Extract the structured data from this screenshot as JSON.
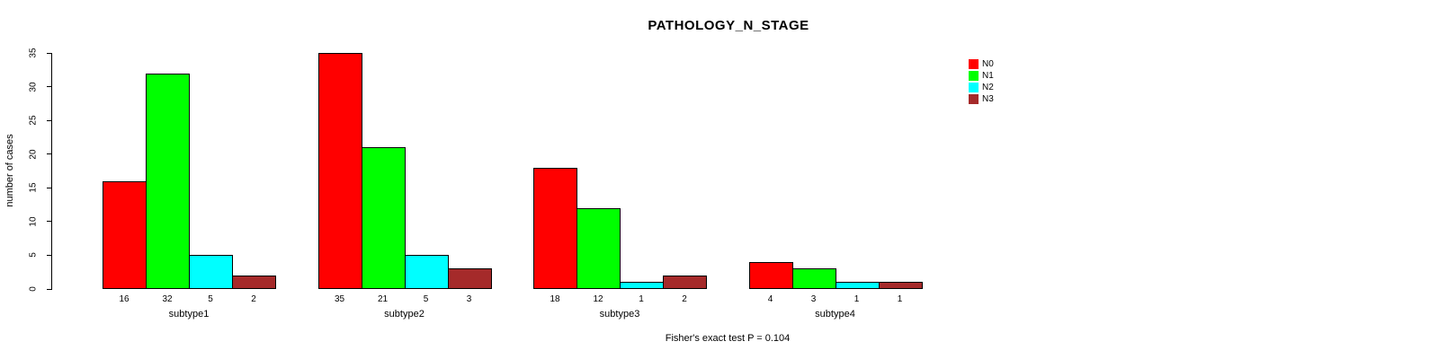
{
  "chart_data": {
    "type": "bar",
    "title": "PATHOLOGY_N_STAGE",
    "categories": [
      "subtype1",
      "subtype2",
      "subtype3",
      "subtype4"
    ],
    "series": [
      {
        "name": "N0",
        "color": "#ff0000",
        "values": [
          16,
          35,
          18,
          4
        ]
      },
      {
        "name": "N1",
        "color": "#00ff00",
        "values": [
          32,
          21,
          12,
          3
        ]
      },
      {
        "name": "N2",
        "color": "#00ffff",
        "values": [
          5,
          5,
          1,
          1
        ]
      },
      {
        "name": "N3",
        "color": "#a52a2a",
        "values": [
          2,
          3,
          2,
          1
        ]
      }
    ],
    "xlabel": "",
    "ylabel": "number of cases",
    "ylim": [
      0,
      35
    ],
    "yticks": [
      0,
      5,
      10,
      15,
      20,
      25,
      30,
      35
    ],
    "bar_value_labels": true,
    "bar_border_color": "#000000",
    "annotation": "Fisher's exact test P = 0.104",
    "legend_position": "top-right",
    "grid": false,
    "background_color": "#ffffff"
  }
}
